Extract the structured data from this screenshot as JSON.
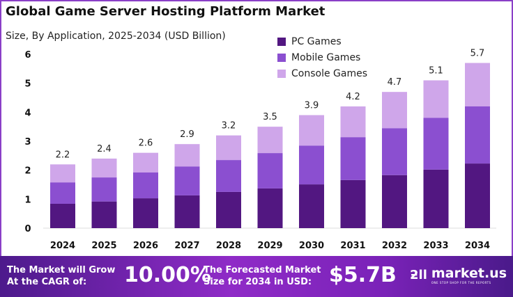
{
  "chart_data": {
    "type": "bar",
    "stacked": true,
    "title": "Global Game Server Hosting Platform Market",
    "subtitle": "Size, By Application, 2025-2034 (USD Billion)",
    "categories": [
      "2024",
      "2025",
      "2026",
      "2027",
      "2028",
      "2029",
      "2030",
      "2031",
      "2032",
      "2033",
      "2034"
    ],
    "series": [
      {
        "name": "PC Games",
        "color": "#521781",
        "values": [
          0.84,
          0.92,
          1.03,
          1.13,
          1.25,
          1.37,
          1.51,
          1.66,
          1.83,
          2.02,
          2.23
        ]
      },
      {
        "name": "Mobile Games",
        "color": "#8b4fd0",
        "values": [
          0.74,
          0.83,
          0.89,
          1.0,
          1.1,
          1.22,
          1.34,
          1.48,
          1.62,
          1.79,
          1.97
        ]
      },
      {
        "name": "Console Games",
        "color": "#cfa6ea",
        "values": [
          0.62,
          0.65,
          0.68,
          0.77,
          0.85,
          0.91,
          1.05,
          1.06,
          1.25,
          1.29,
          1.5
        ]
      }
    ],
    "totals": [
      "2.2",
      "2.4",
      "2.6",
      "2.9",
      "3.2",
      "3.5",
      "3.9",
      "4.2",
      "4.7",
      "5.1",
      "5.7"
    ],
    "ylim": [
      0,
      6
    ],
    "yticks": [
      "0",
      "1",
      "2",
      "3",
      "4",
      "5",
      "6"
    ],
    "grid": false,
    "legend": "top-right"
  },
  "footer": {
    "cagr_label_1": "The Market will Grow",
    "cagr_label_2": "At the CAGR of:",
    "cagr_value": "10.00%",
    "forecast_label_1": "The Forecasted Market",
    "forecast_label_2": "Size for 2034 in USD:",
    "forecast_value": "$5.7B",
    "brand": "market.us",
    "brand_tagline": "ONE STOP SHOP FOR THE REPORTS"
  }
}
